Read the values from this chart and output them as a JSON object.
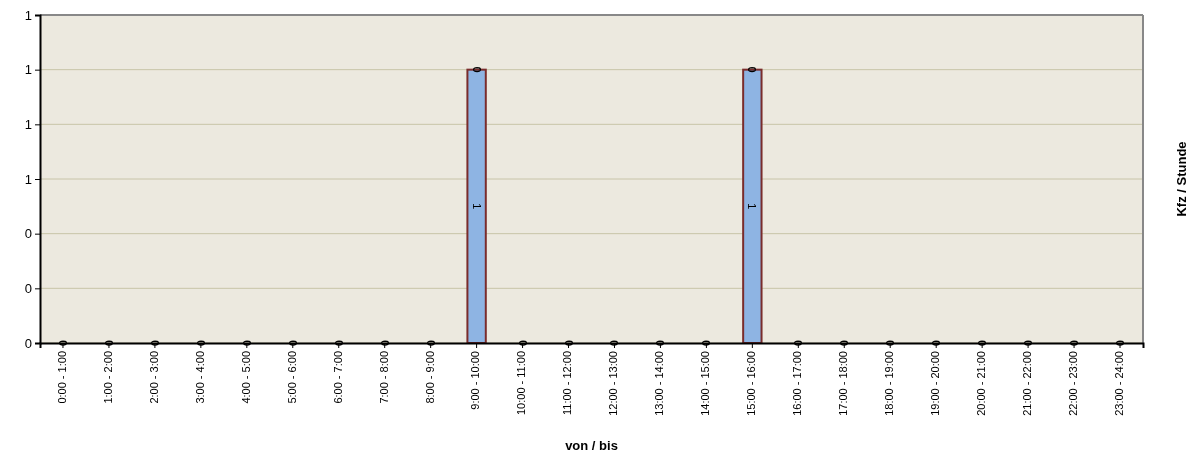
{
  "chart_data": {
    "type": "bar",
    "stacked": true,
    "xlabel": "von / bis",
    "ylabel": "Kfz / Stunde",
    "categories": [
      "0:00 - 1:00",
      "1:00 - 2:00",
      "2:00 - 3:00",
      "3:00 - 4:00",
      "4:00 - 5:00",
      "5:00 - 6:00",
      "6:00 - 7:00",
      "7:00 - 8:00",
      "8:00 - 9:00",
      "9:00 - 10:00",
      "10:00 - 11:00",
      "11:00 - 12:00",
      "12:00 - 13:00",
      "13:00 - 14:00",
      "14:00 - 15:00",
      "15:00 - 16:00",
      "16:00 - 17:00",
      "17:00 - 18:00",
      "18:00 - 19:00",
      "19:00 - 20:00",
      "20:00 - 21:00",
      "21:00 - 22:00",
      "22:00 - 23:00",
      "23:00 - 24:00"
    ],
    "series": [
      {
        "color": "#8eb4e3",
        "values": [
          0,
          0,
          0,
          0,
          0,
          0,
          0,
          0,
          0,
          1,
          0,
          0,
          0,
          0,
          0,
          1,
          0,
          0,
          0,
          0,
          0,
          0,
          0,
          0
        ],
        "value_labels": [
          null,
          null,
          null,
          null,
          null,
          null,
          null,
          null,
          null,
          "1",
          null,
          null,
          null,
          null,
          null,
          "1",
          null,
          null,
          null,
          null,
          null,
          null,
          null,
          null
        ]
      },
      {
        "color": "#000000",
        "values": [
          0,
          0,
          0,
          0,
          0,
          0,
          0,
          0,
          0,
          0,
          0,
          0,
          0,
          0,
          0,
          0,
          0,
          0,
          0,
          0,
          0,
          0,
          0,
          0
        ],
        "value_labels": [
          "0",
          "0",
          "0",
          "0",
          "0",
          "0",
          "0",
          "0",
          "0",
          "0",
          "0",
          "0",
          "0",
          "0",
          "0",
          "0",
          "0",
          "0",
          "0",
          "0",
          "0",
          "0",
          "0",
          "0"
        ]
      }
    ],
    "ylim": [
      0,
      1.2
    ],
    "yticks": [
      {
        "value": 0,
        "label": "0"
      },
      {
        "value": 0.2,
        "label": "0"
      },
      {
        "value": 0.4,
        "label": "0"
      },
      {
        "value": 0.6,
        "label": "1"
      },
      {
        "value": 0.8,
        "label": "1"
      },
      {
        "value": 1,
        "label": "1"
      },
      {
        "value": 1.2,
        "label": "1"
      }
    ],
    "grid": "y"
  }
}
